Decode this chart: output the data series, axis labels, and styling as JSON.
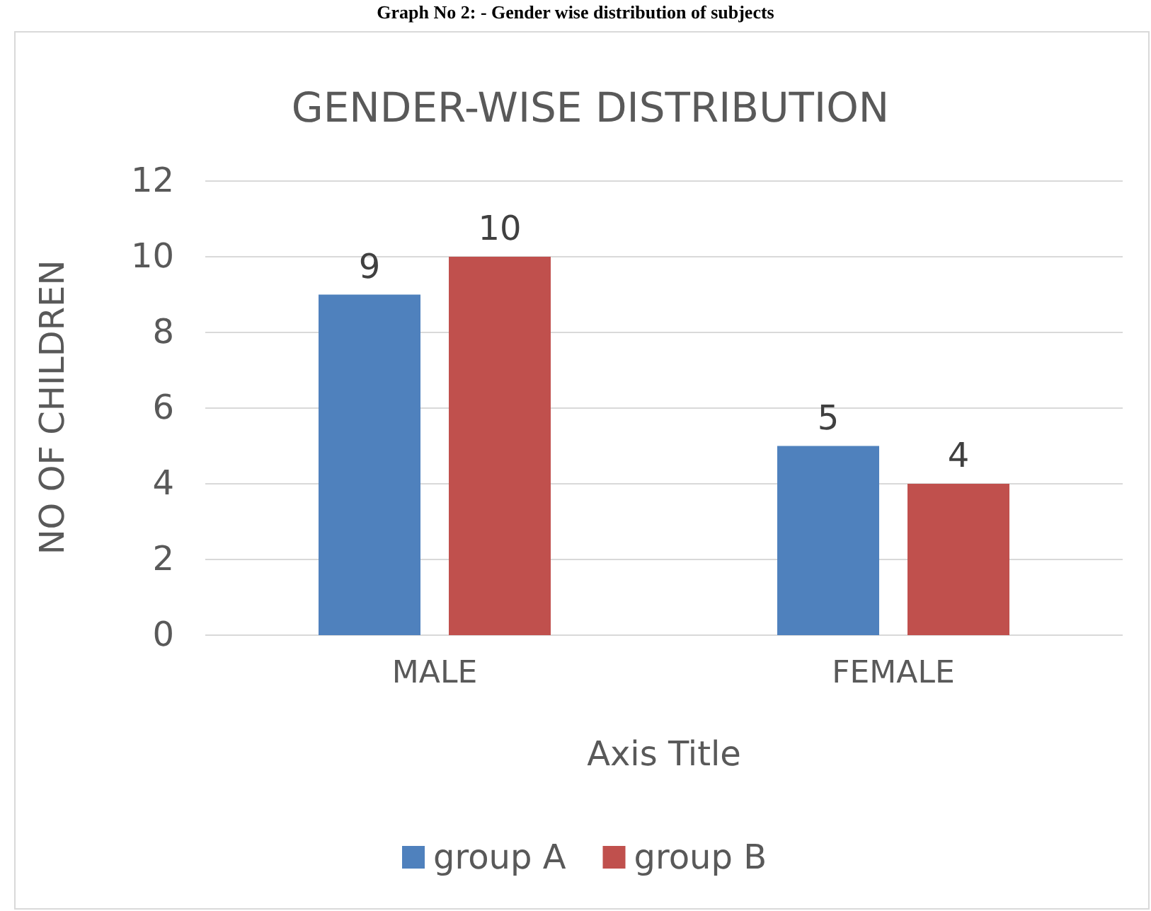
{
  "chart_data": {
    "type": "bar",
    "title": "GENDER-WISE DISTRIBUTION",
    "xlabel": "Axis Title",
    "ylabel": "NO OF CHILDREN",
    "annotations": [
      "Graph No 2: - Gender wise distribution of subjects"
    ],
    "categories": [
      "MALE",
      "FEMALE"
    ],
    "series": [
      {
        "name": "group A",
        "color": "#4f81bd",
        "values": [
          9,
          5
        ]
      },
      {
        "name": "group B",
        "color": "#c0504d",
        "values": [
          10,
          4
        ]
      }
    ],
    "ylim": [
      0,
      12
    ],
    "yticks": [
      0,
      2,
      4,
      6,
      8,
      10,
      12
    ],
    "grid": "y",
    "legend": "bottom",
    "data_labels": true
  }
}
